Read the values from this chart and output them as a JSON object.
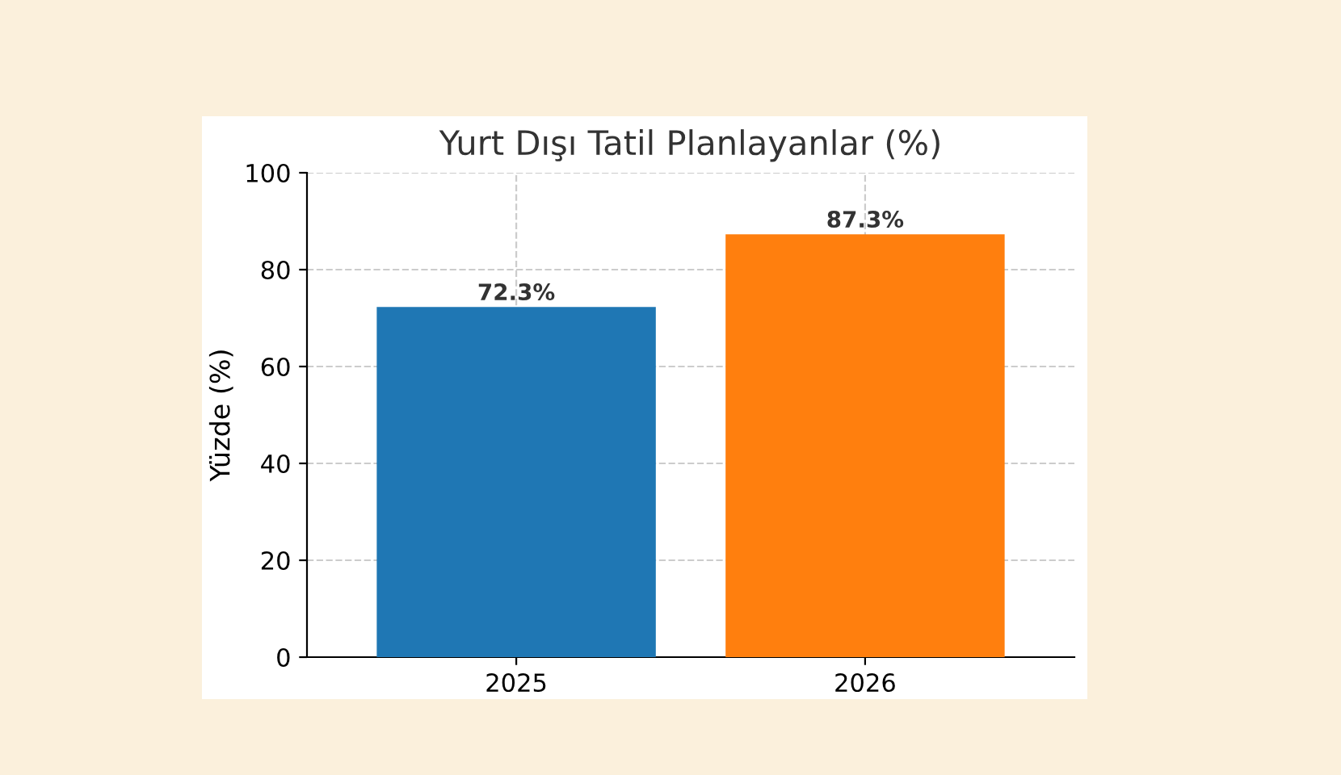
{
  "chart_data": {
    "type": "bar",
    "title": "Yurt Dışı Tatil Planlayanlar (%)",
    "ylabel": "Yüzde (%)",
    "categories": [
      "2025",
      "2026"
    ],
    "values": [
      72.3,
      87.3
    ],
    "colors": [
      "#1f77b4",
      "#ff7f0e"
    ],
    "value_labels": [
      "72.3%",
      "87.3%"
    ],
    "ylim": [
      0,
      100
    ],
    "yticks": [
      0,
      20,
      40,
      60,
      80,
      100
    ],
    "grid": true
  }
}
